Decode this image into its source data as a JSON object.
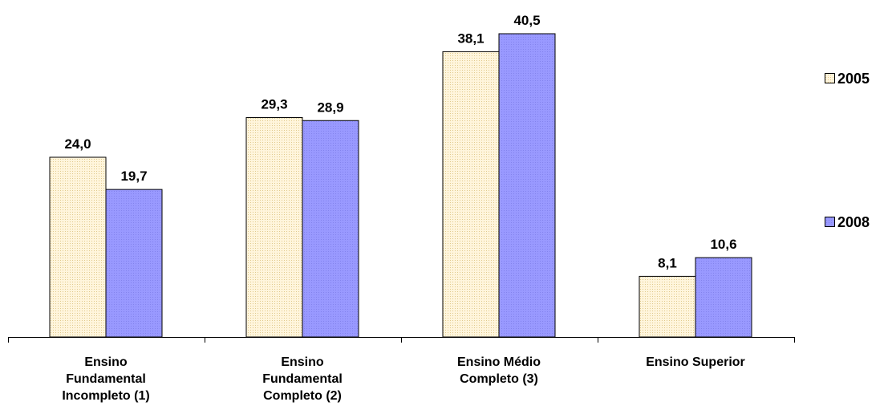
{
  "chart_data": {
    "type": "bar",
    "categories": [
      [
        "Ensino",
        "Fundamental",
        "Incompleto (1)"
      ],
      [
        "Ensino",
        "Fundamental",
        "Completo (2)"
      ],
      [
        "Ensino Médio",
        "Completo (3)"
      ],
      [
        "Ensino Superior"
      ]
    ],
    "series": [
      {
        "name": "2005",
        "values": [
          24.0,
          29.3,
          38.1,
          8.1
        ],
        "labels": [
          "24,0",
          "29,3",
          "38,1",
          "8,1"
        ],
        "color": "#FFF5DC",
        "pattern": "dotted"
      },
      {
        "name": "2008",
        "values": [
          19.7,
          28.9,
          40.5,
          10.6
        ],
        "labels": [
          "19,7",
          "28,9",
          "40,5",
          "10,6"
        ],
        "color": "#9999FF",
        "pattern": "dotted"
      }
    ],
    "ylim": [
      0,
      45
    ],
    "grid": false,
    "legend": "right"
  }
}
